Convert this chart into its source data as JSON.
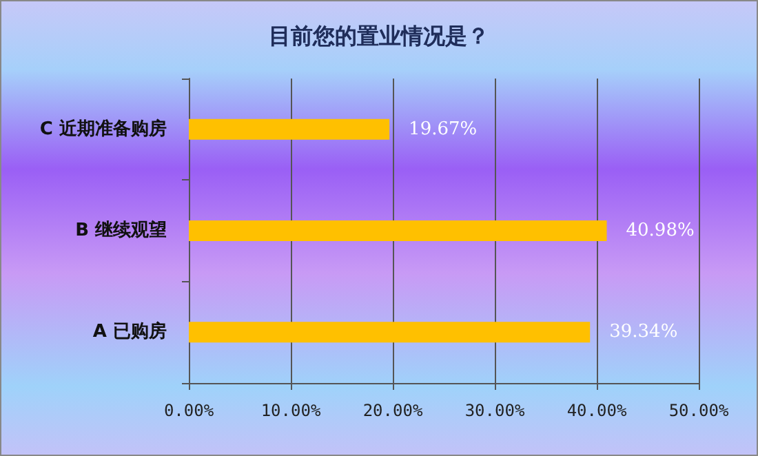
{
  "chart_data": {
    "type": "bar",
    "title": "目前您的置业情况是？",
    "orientation": "horizontal",
    "categories": [
      "C 近期准备购房",
      "B 继续观望",
      "A 已购房"
    ],
    "values": [
      19.67,
      40.98,
      39.34
    ],
    "color": "#ffc000",
    "value_labels": [
      "19.67%",
      "40.98%",
      "39.34%"
    ],
    "xlim": [
      0,
      50
    ],
    "xticks": [
      {
        "value": 0,
        "label": "0.00%"
      },
      {
        "value": 10,
        "label": "10.00%"
      },
      {
        "value": 20,
        "label": "20.00%"
      },
      {
        "value": 30,
        "label": "30.00%"
      },
      {
        "value": 40,
        "label": "40.00%"
      },
      {
        "value": 50,
        "label": "50.00%"
      }
    ],
    "grid": "x"
  }
}
